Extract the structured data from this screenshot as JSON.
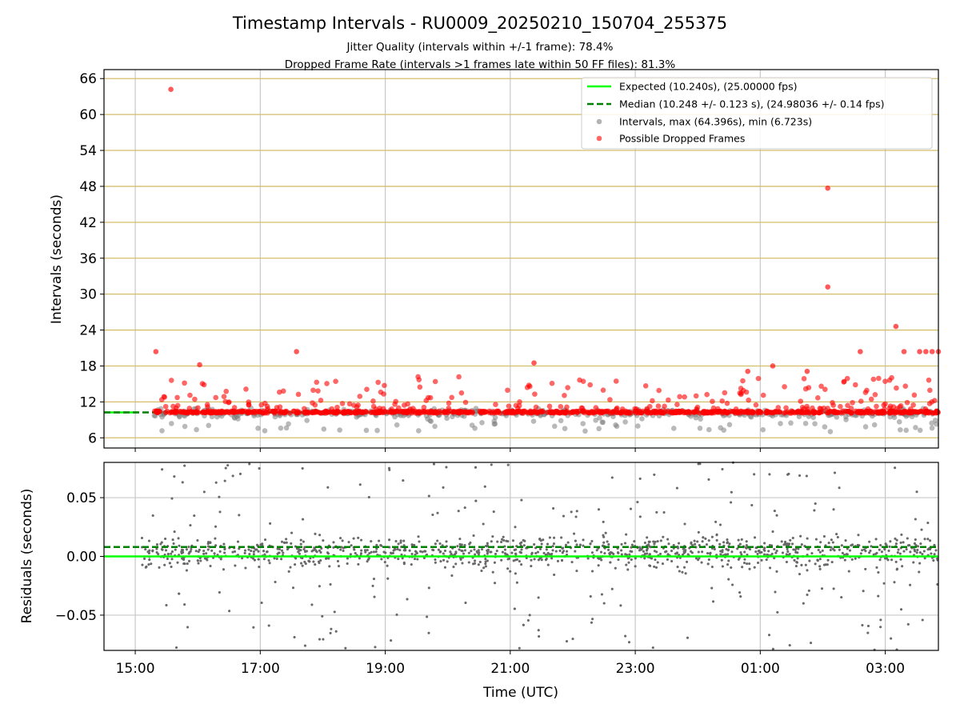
{
  "title": "Timestamp Intervals - RU0009_20250210_150704_255375",
  "subtitle_1": "Jitter Quality (intervals within +/-1 frame): 78.4%",
  "subtitle_2": "Dropped Frame Rate (intervals >1 frames late within 50 FF files): 81.3%",
  "colors": {
    "expected": "#00ff00",
    "median": "#007f00",
    "intervals": "#808080",
    "dropped": "#ff0000",
    "top_grid": "#d4be6a",
    "grid": "#c8c8c8"
  },
  "chart_data": [
    {
      "type": "scatter",
      "panel": "intervals",
      "ylabel": "Intervals (seconds)",
      "ylim": [
        4.3,
        67.5
      ],
      "xlim": [
        14.5,
        27.85
      ],
      "yticks": [
        "6",
        "12",
        "18",
        "24",
        "30",
        "36",
        "42",
        "48",
        "54",
        "60",
        "66"
      ],
      "grid": "horizontal gold lines at each y tick, vertical gray lines at each x tick",
      "legend": {
        "placement": "top-right",
        "entries": [
          "Expected (10.240s), (25.00000 fps)",
          "Median (10.248 +/- 0.123 s), (24.98036 +/- 0.14 fps)",
          "Intervals, max (64.396s), min (6.723s)",
          "Possible Dropped Frames"
        ]
      },
      "series": [
        {
          "name": "Expected (10.240s), (25.00000 fps)",
          "kind": "hline",
          "value": 10.24,
          "style": "solid"
        },
        {
          "name": "Median (10.248 +/- 0.123 s), (24.98036 +/- 0.14 fps)",
          "kind": "hline",
          "value": 10.248,
          "style": "dashed"
        },
        {
          "name": "Intervals, max (64.396s), min (6.723s)",
          "kind": "scatter",
          "typical_range": [
            7.0,
            11.5
          ],
          "max": 64.396,
          "min": 6.723
        },
        {
          "name": "Possible Dropped Frames",
          "kind": "scatter",
          "baseline": 10.3,
          "notable_points": [
            {
              "x": 15.57,
              "y": 64.2
            },
            {
              "x": 15.33,
              "y": 20.4
            },
            {
              "x": 17.58,
              "y": 20.4
            },
            {
              "x": 16.03,
              "y": 18.2
            },
            {
              "x": 21.38,
              "y": 18.5
            },
            {
              "x": 26.08,
              "y": 47.7
            },
            {
              "x": 26.08,
              "y": 31.2
            },
            {
              "x": 27.17,
              "y": 24.6
            },
            {
              "x": 26.6,
              "y": 20.4
            },
            {
              "x": 27.3,
              "y": 20.4
            },
            {
              "x": 27.55,
              "y": 20.4
            },
            {
              "x": 27.65,
              "y": 20.4
            },
            {
              "x": 27.75,
              "y": 20.4
            },
            {
              "x": 27.85,
              "y": 20.4
            },
            {
              "x": 25.2,
              "y": 18.0
            },
            {
              "x": 24.8,
              "y": 17.1
            },
            {
              "x": 25.75,
              "y": 17.1
            }
          ]
        }
      ]
    },
    {
      "type": "scatter",
      "panel": "residuals",
      "xlabel": "Time (UTC)",
      "ylabel": "Residuals (seconds)",
      "ylim": [
        -0.08,
        0.08
      ],
      "xlim": [
        14.5,
        27.85
      ],
      "yticks": [
        "−0.05",
        "0.00",
        "0.05"
      ],
      "xticks": [
        "15:00",
        "17:00",
        "19:00",
        "21:00",
        "23:00",
        "01:00",
        "03:00"
      ],
      "grid": "on",
      "series": [
        {
          "name": "expected",
          "kind": "hline",
          "value": 0.0,
          "style": "solid"
        },
        {
          "name": "median",
          "kind": "hline",
          "value": 0.008,
          "style": "dashed"
        },
        {
          "name": "residuals",
          "kind": "scatter",
          "core_spread": 0.02,
          "max_spread": 0.08
        }
      ]
    }
  ]
}
